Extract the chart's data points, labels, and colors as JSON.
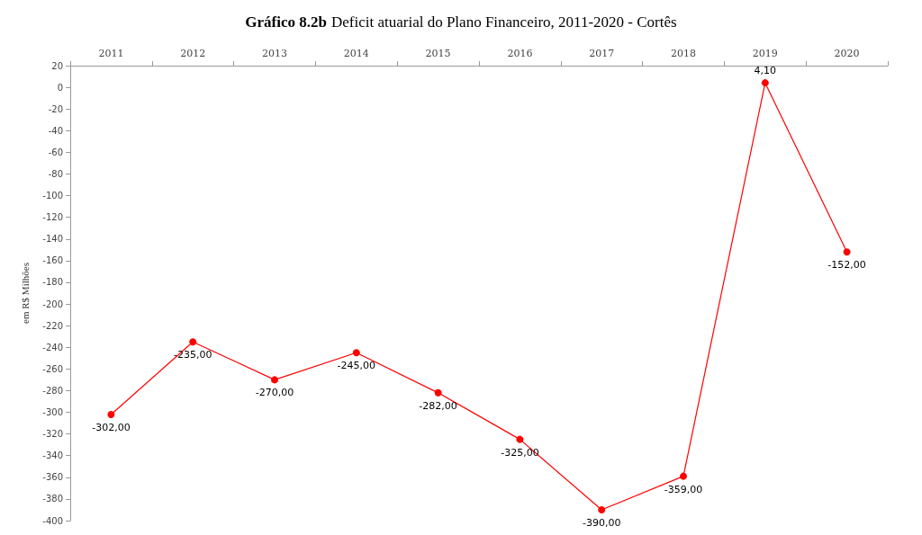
{
  "chart_data": {
    "type": "line",
    "title": "Gráfico 8.2b Deficit atuarial do Plano Financeiro, 2011-2020 - Cortês",
    "ylabel": "em R$ Milhões",
    "categories": [
      "2011",
      "2012",
      "2013",
      "2014",
      "2015",
      "2016",
      "2017",
      "2018",
      "2019",
      "2020"
    ],
    "series": [
      {
        "color": "#ff0000",
        "values": [
          -302,
          -235,
          -270,
          -245,
          -282,
          -325,
          -390,
          -359,
          4.1,
          -152
        ],
        "value_labels": [
          "-302,00",
          "-235,00",
          "-270,00",
          "-245,00",
          "-282,00",
          "-325,00",
          "-390,00",
          "-359,00",
          "4,10",
          "-152,00"
        ]
      }
    ],
    "ylim": [
      -400,
      20
    ],
    "yticks": [
      -400,
      -380,
      -360,
      -340,
      -320,
      -300,
      -280,
      -260,
      -240,
      -220,
      -200,
      -180,
      -160,
      -140,
      -120,
      -100,
      -80,
      -60,
      -40,
      -20,
      0,
      20
    ],
    "grid": false,
    "marker": "circle",
    "line_style": "solid"
  }
}
